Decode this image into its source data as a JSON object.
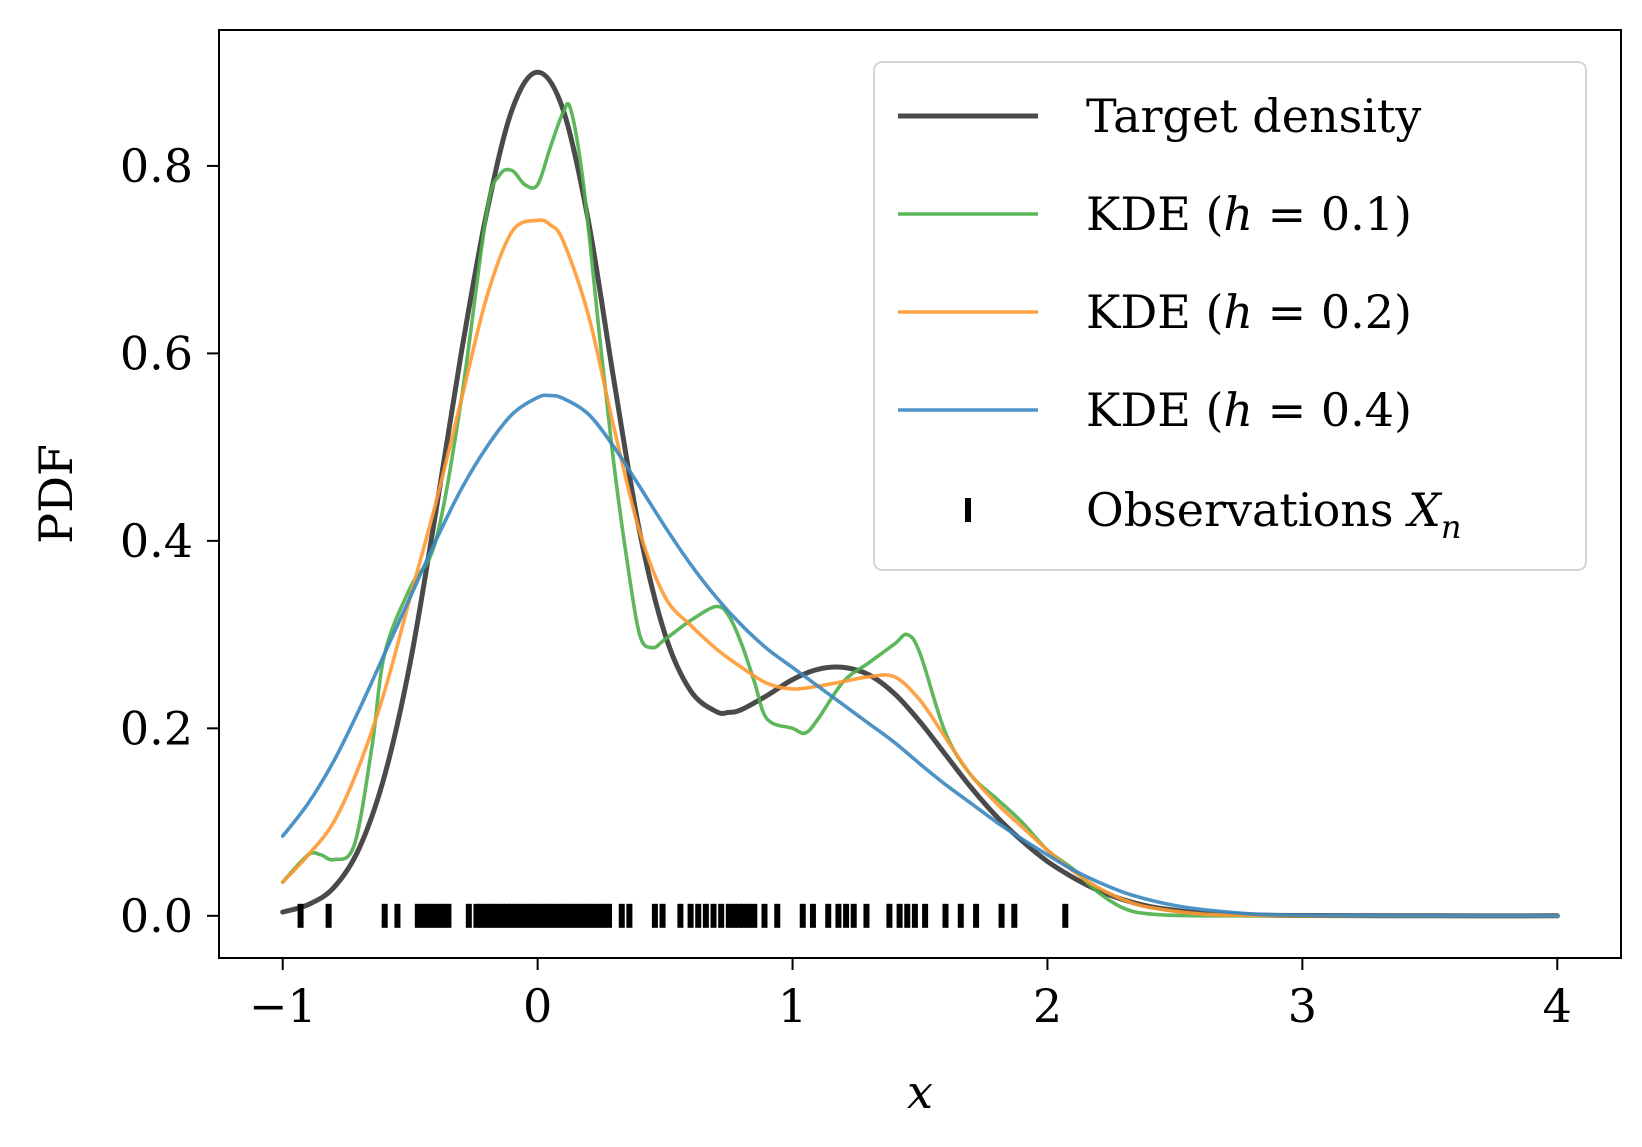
{
  "chart_data": {
    "type": "line",
    "title": "",
    "xlabel": "x",
    "ylabel": "PDF",
    "xlim": [
      -1.25,
      4.25
    ],
    "ylim": [
      -0.045,
      0.945
    ],
    "xticks": [
      -1,
      0,
      1,
      2,
      3,
      4
    ],
    "xtick_labels": [
      "−1",
      "0",
      "1",
      "2",
      "3",
      "4"
    ],
    "yticks": [
      0.0,
      0.2,
      0.4,
      0.6,
      0.8
    ],
    "ytick_labels": [
      "0.0",
      "0.2",
      "0.4",
      "0.6",
      "0.8"
    ],
    "grid": false,
    "legend_position": "top-right",
    "series": [
      {
        "name": "Target density",
        "legend": {
          "prefix": "Target density",
          "math": "",
          "suffix": ""
        },
        "color": "#404040",
        "x": [
          -1.0,
          -0.9,
          -0.8,
          -0.7,
          -0.6,
          -0.5,
          -0.4,
          -0.3,
          -0.2,
          -0.1,
          0.0,
          0.1,
          0.2,
          0.3,
          0.4,
          0.5,
          0.6,
          0.7,
          0.75,
          0.8,
          0.9,
          1.0,
          1.1,
          1.2,
          1.3,
          1.4,
          1.5,
          1.6,
          1.7,
          1.8,
          1.9,
          2.0,
          2.1,
          2.2,
          2.3,
          2.4,
          2.5,
          2.6,
          2.8,
          3.0,
          3.5,
          4.0
        ],
        "y": [
          0.004,
          0.012,
          0.03,
          0.072,
          0.15,
          0.27,
          0.43,
          0.6,
          0.75,
          0.86,
          0.9,
          0.86,
          0.74,
          0.57,
          0.41,
          0.3,
          0.24,
          0.218,
          0.217,
          0.22,
          0.235,
          0.252,
          0.263,
          0.265,
          0.257,
          0.237,
          0.207,
          0.172,
          0.137,
          0.106,
          0.08,
          0.058,
          0.041,
          0.027,
          0.017,
          0.01,
          0.006,
          0.003,
          0.001,
          0.0003,
          0.0,
          0.0
        ]
      },
      {
        "name": "KDE (h = 0.1)",
        "legend": {
          "prefix": "KDE (",
          "math": "h",
          "suffix": " = 0.1)"
        },
        "color": "#4daf4a",
        "x": [
          -1.0,
          -0.9,
          -0.85,
          -0.8,
          -0.72,
          -0.65,
          -0.6,
          -0.5,
          -0.4,
          -0.3,
          -0.2,
          -0.15,
          -0.1,
          -0.05,
          0.0,
          0.05,
          0.1,
          0.13,
          0.18,
          0.25,
          0.3,
          0.35,
          0.4,
          0.45,
          0.5,
          0.6,
          0.7,
          0.75,
          0.8,
          0.85,
          0.9,
          1.0,
          1.05,
          1.1,
          1.2,
          1.3,
          1.4,
          1.45,
          1.5,
          1.6,
          1.7,
          1.8,
          1.9,
          2.0,
          2.1,
          2.2,
          2.3,
          2.4,
          2.6,
          3.0,
          3.5,
          4.0
        ],
        "y": [
          0.036,
          0.065,
          0.065,
          0.06,
          0.075,
          0.18,
          0.28,
          0.35,
          0.4,
          0.55,
          0.75,
          0.79,
          0.795,
          0.78,
          0.78,
          0.82,
          0.857,
          0.86,
          0.78,
          0.6,
          0.48,
          0.38,
          0.3,
          0.286,
          0.295,
          0.315,
          0.33,
          0.32,
          0.29,
          0.25,
          0.21,
          0.2,
          0.195,
          0.21,
          0.25,
          0.27,
          0.29,
          0.3,
          0.28,
          0.195,
          0.15,
          0.125,
          0.1,
          0.07,
          0.05,
          0.025,
          0.008,
          0.002,
          0.0,
          0.0,
          0.0,
          0.0
        ]
      },
      {
        "name": "KDE (h = 0.2)",
        "legend": {
          "prefix": "KDE (",
          "math": "h",
          "suffix": " = 0.2)"
        },
        "color": "#ff9933",
        "x": [
          -1.0,
          -0.9,
          -0.8,
          -0.7,
          -0.6,
          -0.5,
          -0.4,
          -0.3,
          -0.2,
          -0.1,
          0.0,
          0.05,
          0.1,
          0.2,
          0.3,
          0.4,
          0.5,
          0.6,
          0.7,
          0.8,
          0.9,
          1.0,
          1.1,
          1.2,
          1.3,
          1.4,
          1.5,
          1.6,
          1.7,
          1.8,
          1.9,
          2.0,
          2.1,
          2.2,
          2.3,
          2.4,
          2.6,
          2.8,
          3.0,
          3.5,
          4.0
        ],
        "y": [
          0.036,
          0.065,
          0.1,
          0.16,
          0.24,
          0.34,
          0.44,
          0.55,
          0.66,
          0.73,
          0.742,
          0.737,
          0.72,
          0.64,
          0.52,
          0.41,
          0.34,
          0.31,
          0.285,
          0.265,
          0.248,
          0.242,
          0.245,
          0.25,
          0.255,
          0.255,
          0.23,
          0.19,
          0.15,
          0.12,
          0.095,
          0.07,
          0.048,
          0.03,
          0.017,
          0.009,
          0.002,
          0.0005,
          0.0,
          0.0,
          0.0
        ]
      },
      {
        "name": "KDE (h = 0.4)",
        "legend": {
          "prefix": "KDE (",
          "math": "h",
          "suffix": " = 0.4)"
        },
        "color": "#3a87c0",
        "x": [
          -1.0,
          -0.9,
          -0.8,
          -0.7,
          -0.6,
          -0.5,
          -0.4,
          -0.3,
          -0.2,
          -0.1,
          0.0,
          0.05,
          0.1,
          0.2,
          0.3,
          0.4,
          0.5,
          0.6,
          0.7,
          0.8,
          0.9,
          1.0,
          1.1,
          1.2,
          1.3,
          1.4,
          1.5,
          1.6,
          1.7,
          1.8,
          1.9,
          2.0,
          2.1,
          2.2,
          2.3,
          2.4,
          2.5,
          2.6,
          2.8,
          3.0,
          3.5,
          4.0
        ],
        "y": [
          0.085,
          0.12,
          0.165,
          0.22,
          0.28,
          0.34,
          0.4,
          0.455,
          0.5,
          0.535,
          0.553,
          0.555,
          0.552,
          0.535,
          0.5,
          0.458,
          0.415,
          0.375,
          0.34,
          0.31,
          0.285,
          0.265,
          0.245,
          0.225,
          0.205,
          0.185,
          0.162,
          0.14,
          0.12,
          0.1,
          0.082,
          0.065,
          0.049,
          0.036,
          0.025,
          0.017,
          0.011,
          0.007,
          0.002,
          0.0006,
          0.0,
          0.0
        ]
      }
    ],
    "observations": {
      "name": "Observations X_n",
      "legend": {
        "prefix": "Observations ",
        "math": "X",
        "sub": "n"
      },
      "color": "#000000",
      "x": [
        -0.93,
        -0.82,
        -0.6,
        -0.55,
        -0.47,
        -0.45,
        -0.43,
        -0.41,
        -0.39,
        -0.37,
        -0.35,
        -0.27,
        -0.24,
        -0.22,
        -0.2,
        -0.18,
        -0.16,
        -0.14,
        -0.12,
        -0.1,
        -0.08,
        -0.06,
        -0.04,
        -0.02,
        0.0,
        0.02,
        0.04,
        0.06,
        0.08,
        0.1,
        0.12,
        0.14,
        0.16,
        0.18,
        0.2,
        0.22,
        0.24,
        0.26,
        0.28,
        0.33,
        0.36,
        0.46,
        0.49,
        0.56,
        0.6,
        0.63,
        0.66,
        0.69,
        0.72,
        0.75,
        0.77,
        0.79,
        0.81,
        0.83,
        0.85,
        0.89,
        0.94,
        1.04,
        1.08,
        1.14,
        1.18,
        1.21,
        1.24,
        1.29,
        1.38,
        1.42,
        1.45,
        1.48,
        1.52,
        1.6,
        1.66,
        1.72,
        1.82,
        1.87,
        2.07
      ]
    }
  }
}
